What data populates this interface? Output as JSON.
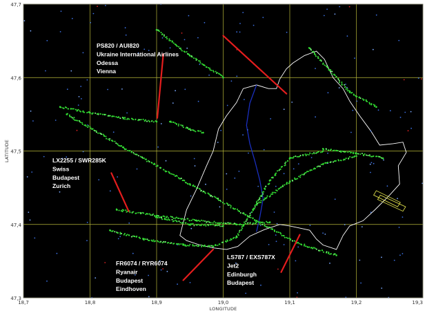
{
  "chart_data": {
    "type": "scatter",
    "xlabel": "LONGITUDE",
    "ylabel": "LATITUDE",
    "xlim": [
      18.7,
      19.3
    ],
    "ylim": [
      47.3,
      47.7
    ],
    "x_ticks": [
      "18,7",
      "18,8",
      "18,9",
      "19,0",
      "19,1",
      "19,2",
      "19,3"
    ],
    "y_ticks": [
      "47,3",
      "47,4",
      "47,5",
      "47,6",
      "47,7"
    ],
    "grid": true,
    "background": "#000000",
    "grid_color": "#b8b83a",
    "annotations": [
      {
        "lines": [
          "PS820 / AUI820",
          "Ukraine International Airlines",
          "Odessa",
          "Vienna"
        ],
        "pointer": [
          {
            "x": 18.91,
            "y": 47.632
          },
          {
            "x": 18.901,
            "y": 47.545
          }
        ],
        "pointer2": [
          {
            "x": 19.0,
            "y": 47.657
          },
          {
            "x": 19.095,
            "y": 47.578
          }
        ]
      },
      {
        "lines": [
          "LX2255 / SWR285K",
          "Swiss",
          "Budapest",
          "Zurich"
        ],
        "pointer": [
          {
            "x": 18.832,
            "y": 47.47
          },
          {
            "x": 18.858,
            "y": 47.418
          }
        ]
      },
      {
        "lines": [
          "FR6074 / RYR6074",
          "Ryanair",
          "Budapest",
          "Eindhoven"
        ],
        "pointer": [
          {
            "x": 18.94,
            "y": 47.324
          },
          {
            "x": 18.985,
            "y": 47.366
          }
        ]
      },
      {
        "lines": [
          "LS787 / EXS787X",
          "Jet2",
          "Edinburgh",
          "Budapest"
        ],
        "pointer": [
          {
            "x": 19.087,
            "y": 47.335
          },
          {
            "x": 19.115,
            "y": 47.386
          }
        ]
      }
    ],
    "series": [
      {
        "color": "#33dd33",
        "points": [
          {
            "x": 18.755,
            "y": 47.56
          },
          {
            "x": 18.8,
            "y": 47.552
          },
          {
            "x": 18.85,
            "y": 47.545
          },
          {
            "x": 18.9,
            "y": 47.54
          }
        ]
      },
      {
        "color": "#33dd33",
        "points": [
          {
            "x": 18.765,
            "y": 47.55
          },
          {
            "x": 18.85,
            "y": 47.505
          },
          {
            "x": 18.95,
            "y": 47.455
          },
          {
            "x": 19.05,
            "y": 47.405
          },
          {
            "x": 19.11,
            "y": 47.375
          },
          {
            "x": 19.17,
            "y": 47.358
          }
        ]
      },
      {
        "color": "#33dd33",
        "points": [
          {
            "x": 18.84,
            "y": 47.42
          },
          {
            "x": 18.9,
            "y": 47.412
          },
          {
            "x": 18.96,
            "y": 47.405
          },
          {
            "x": 19.02,
            "y": 47.4
          },
          {
            "x": 19.07,
            "y": 47.403
          }
        ]
      },
      {
        "color": "#33dd33",
        "points": [
          {
            "x": 18.83,
            "y": 47.392
          },
          {
            "x": 18.88,
            "y": 47.38
          },
          {
            "x": 18.94,
            "y": 47.372
          },
          {
            "x": 18.985,
            "y": 47.37
          },
          {
            "x": 19.02,
            "y": 47.383
          },
          {
            "x": 19.045,
            "y": 47.42
          },
          {
            "x": 19.07,
            "y": 47.46
          },
          {
            "x": 19.1,
            "y": 47.49
          },
          {
            "x": 19.15,
            "y": 47.5
          }
        ]
      },
      {
        "color": "#33dd33",
        "points": [
          {
            "x": 19.05,
            "y": 47.427
          },
          {
            "x": 19.1,
            "y": 47.458
          },
          {
            "x": 19.15,
            "y": 47.482
          },
          {
            "x": 19.2,
            "y": 47.493
          }
        ]
      },
      {
        "color": "#33dd33",
        "points": [
          {
            "x": 19.15,
            "y": 47.503
          },
          {
            "x": 19.2,
            "y": 47.497
          },
          {
            "x": 19.24,
            "y": 47.49
          }
        ]
      },
      {
        "color": "#33dd33",
        "points": [
          {
            "x": 18.9,
            "y": 47.41
          },
          {
            "x": 18.95,
            "y": 47.4
          },
          {
            "x": 19.0,
            "y": 47.398
          }
        ]
      },
      {
        "color": "#33dd33",
        "points": [
          {
            "x": 18.92,
            "y": 47.54
          },
          {
            "x": 18.95,
            "y": 47.53
          },
          {
            "x": 18.97,
            "y": 47.525
          }
        ]
      },
      {
        "color": "#33dd33",
        "points": [
          {
            "x": 19.13,
            "y": 47.64
          },
          {
            "x": 19.16,
            "y": 47.61
          },
          {
            "x": 19.19,
            "y": 47.58
          },
          {
            "x": 19.23,
            "y": 47.56
          }
        ]
      },
      {
        "color": "#33dd33",
        "points": [
          {
            "x": 18.9,
            "y": 47.665
          },
          {
            "x": 18.95,
            "y": 47.63
          },
          {
            "x": 19.0,
            "y": 47.6
          }
        ]
      }
    ]
  }
}
